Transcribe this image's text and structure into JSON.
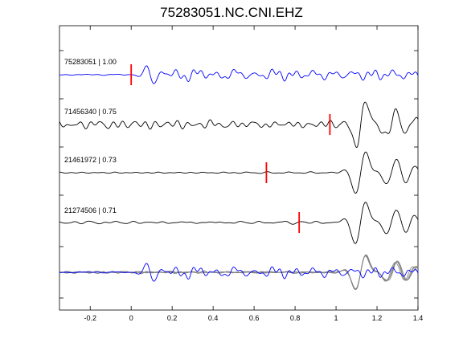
{
  "chart_data": {
    "type": "line",
    "title": "75283051.NC.CNI.EHZ",
    "xlabel": "",
    "ylabel": "",
    "xlim": [
      -0.35,
      1.4
    ],
    "x_ticks": [
      -0.2,
      0,
      0.2,
      0.4,
      0.6,
      0.8,
      1,
      1.2,
      1.4
    ],
    "x_tick_labels": [
      "-0.2",
      "0",
      "0.2",
      "0.4",
      "0.6",
      "0.8",
      "1",
      "1.2",
      "1.4"
    ],
    "grid": false,
    "colors": {
      "template": "#0000ff",
      "match": "#000000",
      "overlay": "#808080",
      "pick": "#ff0000"
    },
    "traces": [
      {
        "label": "75283051 | 1.00",
        "event_id": "75283051",
        "correlation": 1.0,
        "pick_time": 0.0,
        "color": "#0000ff"
      },
      {
        "label": "71456340 | 0.75",
        "event_id": "71456340",
        "correlation": 0.75,
        "pick_time": 0.97,
        "color": "#000000"
      },
      {
        "label": "21461972 | 0.73",
        "event_id": "21461972",
        "correlation": 0.73,
        "pick_time": 0.66,
        "color": "#000000"
      },
      {
        "label": "21274506 | 0.71",
        "event_id": "21274506",
        "correlation": 0.71,
        "pick_time": 0.82,
        "color": "#000000"
      }
    ],
    "stack": {
      "description_visible": false
    }
  }
}
